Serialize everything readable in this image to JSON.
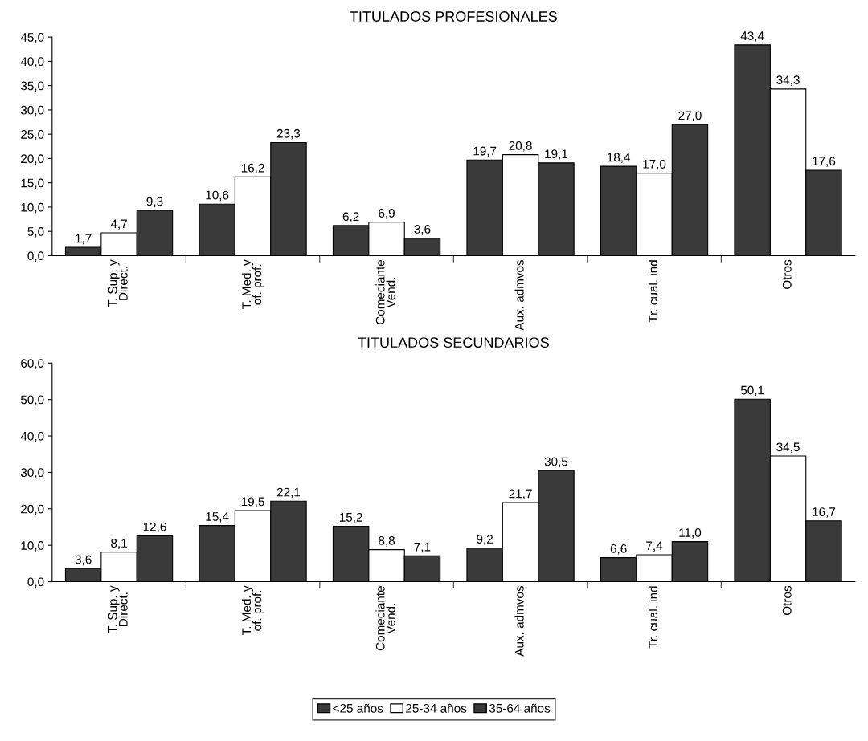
{
  "chart_data": [
    {
      "type": "bar",
      "title": "TITULADOS PROFESIONALES",
      "categories": [
        "T. Sup. y\nDirect.",
        "T. Med. y\nof. prof.",
        "Comeciante\nVend.",
        "Aux. admvos",
        "Tr. cual. ind",
        "Otros"
      ],
      "series": [
        {
          "name": "<25 años",
          "color": "#3a3a3a",
          "values": [
            1.7,
            10.6,
            6.2,
            19.7,
            18.4,
            43.4
          ],
          "value_labels": [
            "1,7",
            "10,6",
            "6,2",
            "19,7",
            "18,4",
            "43,4"
          ]
        },
        {
          "name": "25-34 años",
          "color": "#ffffff",
          "values": [
            4.7,
            16.2,
            6.9,
            20.8,
            17.0,
            34.3
          ],
          "value_labels": [
            "4,7",
            "16,2",
            "6,9",
            "20,8",
            "17,0",
            "34,3"
          ]
        },
        {
          "name": "35-64 años",
          "color": "#3a3a3a",
          "values": [
            9.3,
            23.3,
            3.6,
            19.1,
            27.0,
            17.6
          ],
          "value_labels": [
            "9,3",
            "23,3",
            "3,6",
            "19,1",
            "27,0",
            "17,6"
          ]
        }
      ],
      "ylim": [
        0,
        45
      ],
      "yticks": [
        {
          "value": 0,
          "label": "0,0"
        },
        {
          "value": 5,
          "label": "5,0"
        },
        {
          "value": 10,
          "label": "10,0"
        },
        {
          "value": 15,
          "label": "15,0"
        },
        {
          "value": 20,
          "label": "20,0"
        },
        {
          "value": 25,
          "label": "25,0"
        },
        {
          "value": 30,
          "label": "30,0"
        },
        {
          "value": 35,
          "label": "35,0"
        },
        {
          "value": 40,
          "label": "40,0"
        },
        {
          "value": 45,
          "label": "45,0"
        }
      ],
      "grid": false,
      "legend": "bottom"
    },
    {
      "type": "bar",
      "title": "TITULADOS SECUNDARIOS",
      "categories": [
        "T. Sup. y\nDirect.",
        "T. Med. y\nof. prof.",
        "Comeciante\nVend.",
        "Aux. admvos",
        "Tr. cual. ind",
        "Otros"
      ],
      "series": [
        {
          "name": "<25 años",
          "color": "#3a3a3a",
          "values": [
            3.6,
            15.4,
            15.2,
            9.2,
            6.6,
            50.1
          ],
          "value_labels": [
            "3,6",
            "15,4",
            "15,2",
            "9,2",
            "6,6",
            "50,1"
          ]
        },
        {
          "name": "25-34 años",
          "color": "#ffffff",
          "values": [
            8.1,
            19.5,
            8.8,
            21.7,
            7.4,
            34.5
          ],
          "value_labels": [
            "8,1",
            "19,5",
            "8,8",
            "21,7",
            "7,4",
            "34,5"
          ]
        },
        {
          "name": "35-64 años",
          "color": "#3a3a3a",
          "values": [
            12.6,
            22.1,
            7.1,
            30.5,
            11.0,
            16.7
          ],
          "value_labels": [
            "12,6",
            "22,1",
            "7,1",
            "30,5",
            "11,0",
            "16,7"
          ]
        }
      ],
      "ylim": [
        0,
        60
      ],
      "yticks": [
        {
          "value": 0,
          "label": "0,0"
        },
        {
          "value": 10,
          "label": "10,0"
        },
        {
          "value": 20,
          "label": "20,0"
        },
        {
          "value": 30,
          "label": "30,0"
        },
        {
          "value": 40,
          "label": "40,0"
        },
        {
          "value": 50,
          "label": "50,0"
        },
        {
          "value": 60,
          "label": "60,0"
        }
      ],
      "grid": false,
      "legend": "bottom"
    }
  ]
}
